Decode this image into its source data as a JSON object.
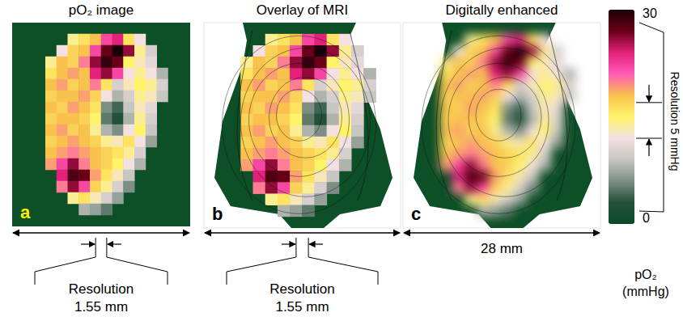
{
  "chart_data": {
    "type": "heatmap",
    "tick_labels": false,
    "panels": [
      {
        "title": "pO₂ image",
        "label": "a",
        "resolution": "Resolution 1.55 mm"
      },
      {
        "title": "Overlay of MRI",
        "label": "b",
        "resolution": "Resolution 1.55 mm"
      },
      {
        "title": "Digitally enhanced",
        "label": "c",
        "width": "28 mm"
      }
    ],
    "cells": [
      [
        null,
        null,
        null,
        null,
        null,
        null,
        null,
        null,
        null,
        null,
        null,
        null,
        null,
        null,
        null,
        null
      ],
      [
        null,
        null,
        null,
        null,
        null,
        14,
        16,
        18,
        22,
        24,
        16,
        12,
        null,
        null,
        null,
        null
      ],
      [
        null,
        null,
        null,
        null,
        12,
        17,
        18,
        22,
        27,
        30,
        26,
        14,
        10,
        null,
        null,
        null
      ],
      [
        null,
        null,
        null,
        14,
        18,
        17,
        20,
        26,
        29,
        27,
        15,
        13,
        11,
        null,
        null,
        null
      ],
      [
        null,
        null,
        null,
        16,
        18,
        19,
        18,
        24,
        26,
        22,
        12,
        14,
        12,
        8,
        null,
        null
      ],
      [
        null,
        null,
        null,
        18,
        19,
        17,
        18,
        20,
        16,
        10,
        13,
        15,
        14,
        10,
        null,
        null
      ],
      [
        null,
        null,
        null,
        17,
        18,
        18,
        19,
        17,
        12,
        8,
        10,
        14,
        13,
        9,
        null,
        null
      ],
      [
        null,
        null,
        null,
        18,
        17,
        19,
        18,
        16,
        6,
        4,
        9,
        13,
        11,
        null,
        null,
        null
      ],
      [
        null,
        null,
        null,
        17,
        18,
        18,
        17,
        15,
        5,
        3,
        8,
        14,
        10,
        null,
        null,
        null
      ],
      [
        null,
        null,
        null,
        18,
        19,
        17,
        18,
        14,
        8,
        6,
        12,
        15,
        9,
        null,
        null,
        null
      ],
      [
        null,
        null,
        null,
        17,
        18,
        19,
        18,
        17,
        14,
        13,
        16,
        12,
        7,
        null,
        null,
        null
      ],
      [
        null,
        null,
        null,
        18,
        19,
        20,
        19,
        18,
        17,
        16,
        14,
        10,
        null,
        null,
        null,
        null
      ],
      [
        null,
        null,
        null,
        19,
        22,
        26,
        20,
        18,
        17,
        15,
        12,
        8,
        null,
        null,
        null,
        null
      ],
      [
        null,
        null,
        null,
        null,
        24,
        28,
        27,
        19,
        16,
        13,
        9,
        null,
        null,
        null,
        null,
        null
      ],
      [
        null,
        null,
        null,
        null,
        20,
        26,
        22,
        17,
        14,
        10,
        6,
        null,
        null,
        null,
        null,
        null
      ],
      [
        null,
        null,
        null,
        null,
        null,
        14,
        16,
        13,
        10,
        7,
        null,
        null,
        null,
        null,
        null,
        null
      ],
      [
        null,
        null,
        null,
        null,
        null,
        null,
        8,
        7,
        5,
        null,
        null,
        null,
        null,
        null,
        null,
        null
      ],
      [
        null,
        null,
        null,
        null,
        null,
        null,
        null,
        null,
        null,
        null,
        null,
        null,
        null,
        null,
        null,
        null
      ]
    ],
    "colorbar": {
      "range": [
        0,
        30
      ],
      "ticks": [
        0,
        30
      ],
      "title": "pO₂ (mmHg)",
      "resolution": {
        "label": "Resolution 5 mmHg",
        "span": [
          12,
          17
        ]
      }
    }
  }
}
